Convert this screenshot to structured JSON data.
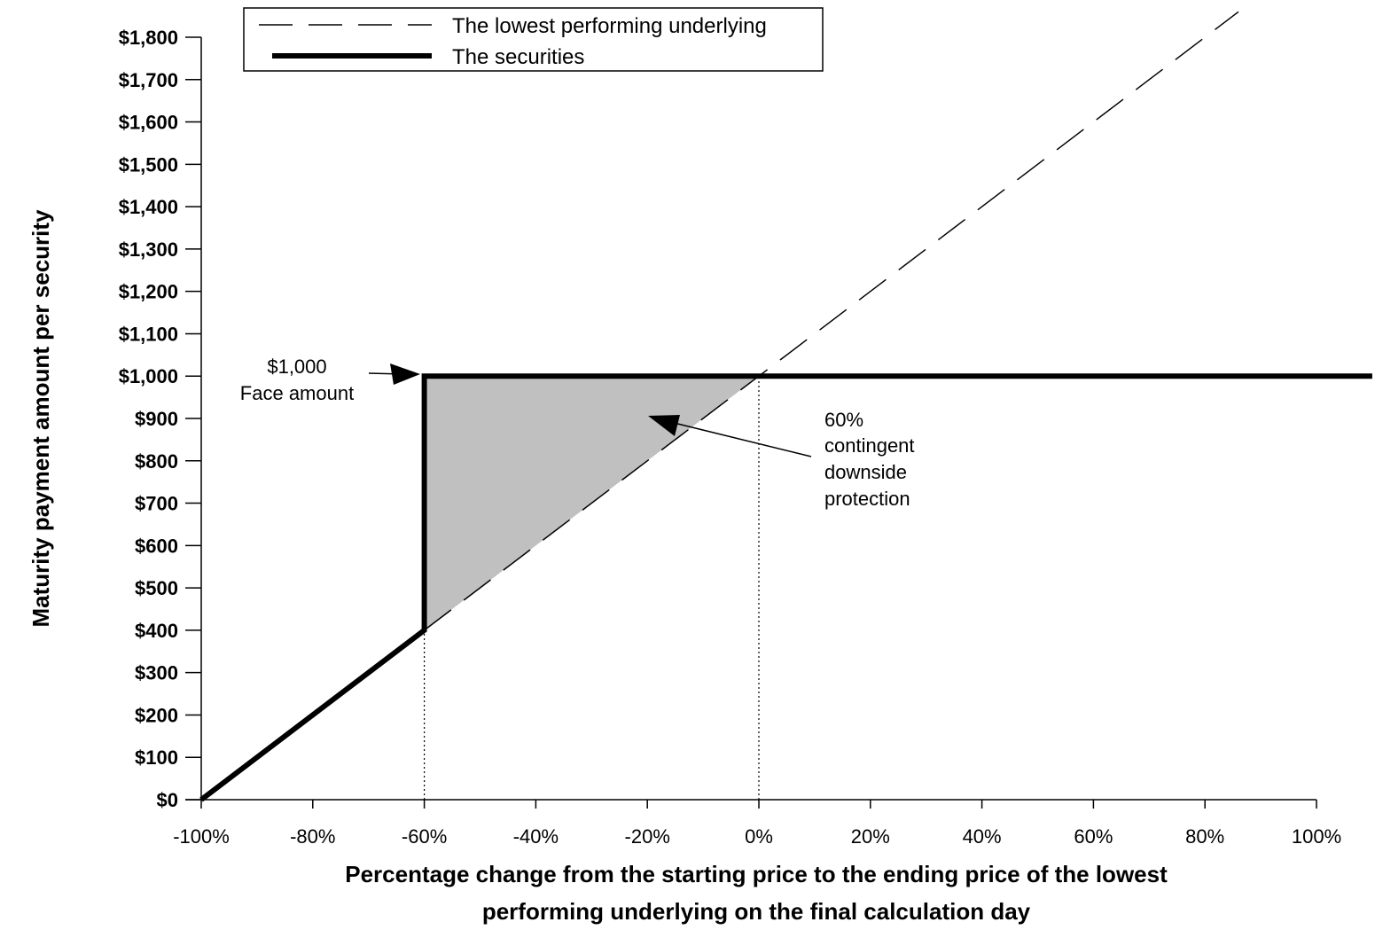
{
  "chart_data": {
    "type": "line",
    "xlabel_lines": [
      "Percentage change from the starting price to the ending price of the lowest",
      "performing underlying on the final calculation day"
    ],
    "ylabel": "Maturity payment amount per security",
    "xlim": [
      -100,
      100
    ],
    "ylim": [
      0,
      1800
    ],
    "x_ticks": [
      {
        "value": -100,
        "label": "-100%"
      },
      {
        "value": -80,
        "label": "-80%"
      },
      {
        "value": -60,
        "label": "-60%"
      },
      {
        "value": -40,
        "label": "-40%"
      },
      {
        "value": -20,
        "label": "-20%"
      },
      {
        "value": 0,
        "label": "0%"
      },
      {
        "value": 20,
        "label": "20%"
      },
      {
        "value": 40,
        "label": "40%"
      },
      {
        "value": 60,
        "label": "60%"
      },
      {
        "value": 80,
        "label": "80%"
      },
      {
        "value": 100,
        "label": "100%"
      }
    ],
    "y_ticks": [
      {
        "value": 0,
        "label": "$0"
      },
      {
        "value": 100,
        "label": "$100"
      },
      {
        "value": 200,
        "label": "$200"
      },
      {
        "value": 300,
        "label": "$300"
      },
      {
        "value": 400,
        "label": "$400"
      },
      {
        "value": 500,
        "label": "$500"
      },
      {
        "value": 600,
        "label": "$600"
      },
      {
        "value": 700,
        "label": "$700"
      },
      {
        "value": 800,
        "label": "$800"
      },
      {
        "value": 900,
        "label": "$900"
      },
      {
        "value": 1000,
        "label": "$1,000"
      },
      {
        "value": 1100,
        "label": "$1,100"
      },
      {
        "value": 1200,
        "label": "$1,200"
      },
      {
        "value": 1300,
        "label": "$1,300"
      },
      {
        "value": 1400,
        "label": "$1,400"
      },
      {
        "value": 1500,
        "label": "$1,500"
      },
      {
        "value": 1600,
        "label": "$1,600"
      },
      {
        "value": 1700,
        "label": "$1,700"
      },
      {
        "value": 1800,
        "label": "$1,800"
      }
    ],
    "series": [
      {
        "name": "The lowest performing underlying",
        "style": "dashed",
        "x": [
          -60,
          86
        ],
        "y": [
          400,
          1860
        ]
      },
      {
        "name": "The securities",
        "style": "solid-thick",
        "x": [
          -100,
          -60,
          -60,
          0,
          110
        ],
        "y": [
          0,
          400,
          1000,
          1000,
          1000
        ]
      }
    ],
    "shaded_region": {
      "x": [
        -60,
        -60,
        0
      ],
      "y": [
        400,
        1000,
        1000
      ],
      "color": "#c0c0c0"
    },
    "reference_lines": [
      {
        "x": -60,
        "y_top": 400
      },
      {
        "x": 0,
        "y_top": 1000
      }
    ],
    "annotations": [
      {
        "lines": [
          "$1,000",
          "Face amount"
        ]
      },
      {
        "lines": [
          "60%",
          "contingent",
          "downside",
          "protection"
        ]
      }
    ],
    "legend_position": "top-left",
    "grid": false
  }
}
